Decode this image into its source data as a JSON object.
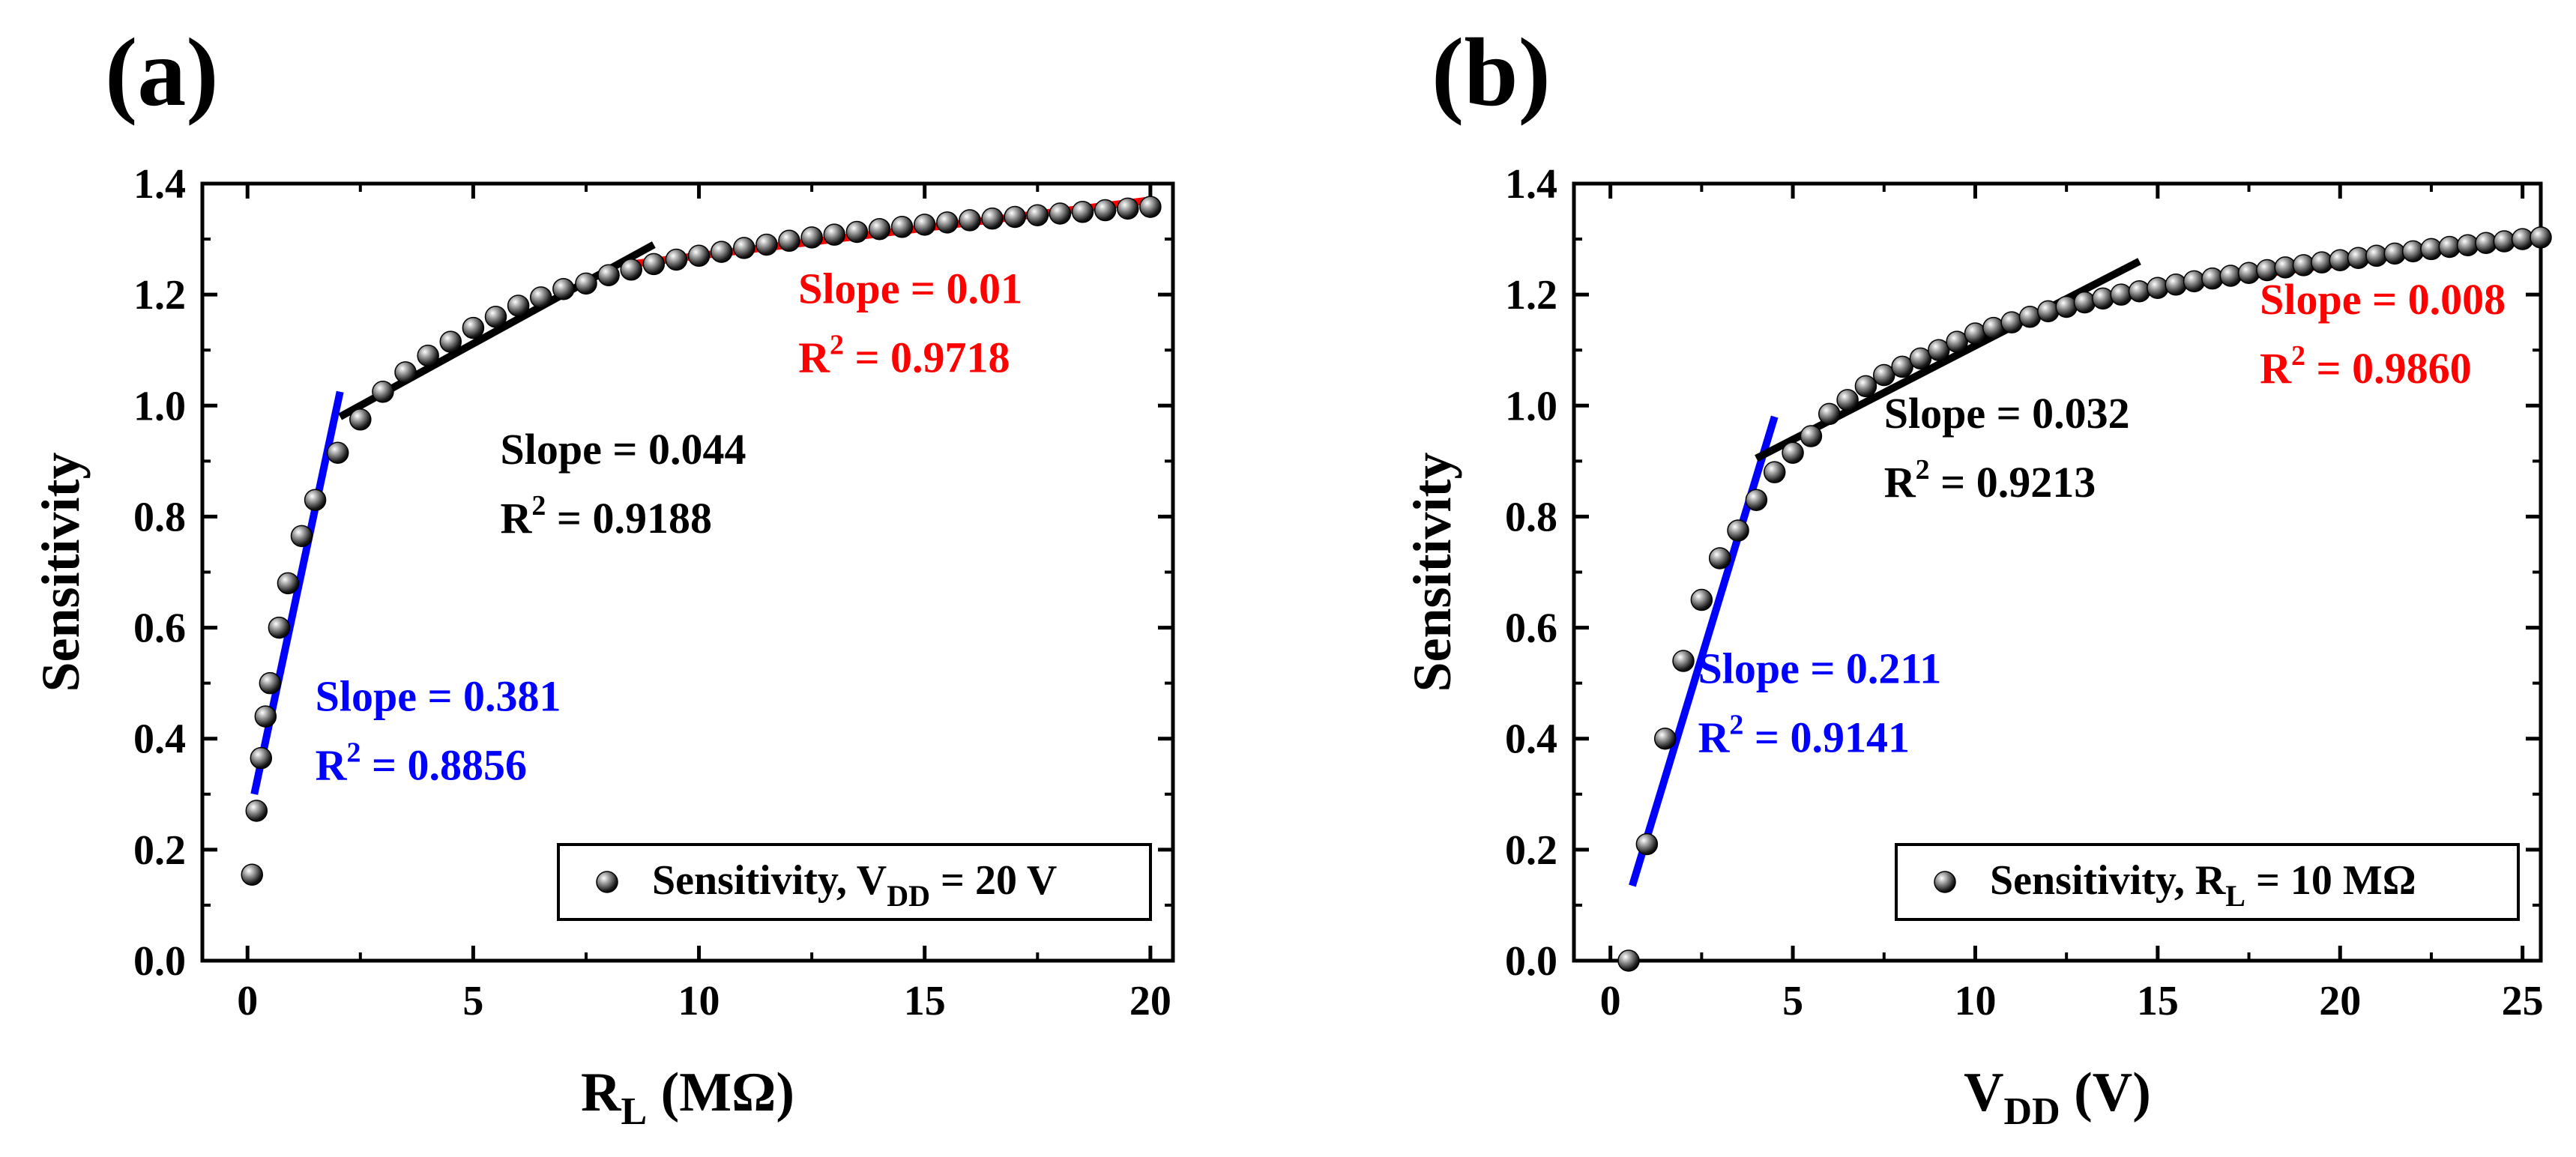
{
  "chart_data": [
    {
      "panel_label": "(a)",
      "type": "scatter",
      "xlabel": "R",
      "xlabel_sub": "L",
      "xlabel_tail": " (MΩ)",
      "ylabel": "Sensitivity",
      "xlim": [
        -1,
        20.5
      ],
      "ylim": [
        0,
        1.4
      ],
      "xticks": [
        "0",
        "5",
        "10",
        "15",
        "20"
      ],
      "xtick_values": [
        0,
        5,
        10,
        15,
        20
      ],
      "yticks": [
        "0.0",
        "0.2",
        "0.4",
        "0.6",
        "0.8",
        "1.0",
        "1.2",
        "1.4"
      ],
      "ytick_values": [
        0,
        0.2,
        0.4,
        0.6,
        0.8,
        1.0,
        1.2,
        1.4
      ],
      "grid": false,
      "legend": {
        "position": "bottom-right",
        "text": "Sensitivity, V",
        "sub": "DD",
        "tail": " = 20 V"
      },
      "series": [
        {
          "name": "Sensitivity, VDD = 20 V",
          "x": [
            0.1,
            0.2,
            0.3,
            0.4,
            0.5,
            0.7,
            0.9,
            1.2,
            1.5,
            2.0,
            2.5,
            3.0,
            3.5,
            4.0,
            4.5,
            5.0,
            5.5,
            6.0,
            6.5,
            7.0,
            7.5,
            8.0,
            8.5,
            9.0,
            9.5,
            10.0,
            10.5,
            11.0,
            11.5,
            12.0,
            12.5,
            13.0,
            13.5,
            14.0,
            14.5,
            15.0,
            15.5,
            16.0,
            16.5,
            17.0,
            17.5,
            18.0,
            18.5,
            19.0,
            19.5,
            20.0
          ],
          "y": [
            0.155,
            0.27,
            0.365,
            0.44,
            0.5,
            0.6,
            0.68,
            0.765,
            0.83,
            0.915,
            0.975,
            1.025,
            1.06,
            1.09,
            1.115,
            1.14,
            1.16,
            1.18,
            1.195,
            1.21,
            1.22,
            1.235,
            1.245,
            1.255,
            1.263,
            1.27,
            1.277,
            1.284,
            1.29,
            1.297,
            1.303,
            1.308,
            1.313,
            1.318,
            1.322,
            1.326,
            1.33,
            1.334,
            1.337,
            1.34,
            1.343,
            1.346,
            1.349,
            1.352,
            1.355,
            1.358
          ]
        }
      ],
      "fits": [
        {
          "color": "#0000ff",
          "x": [
            0.15,
            2.05
          ],
          "y": [
            0.3,
            1.025
          ],
          "slope_text": "Slope = 0.381",
          "r2_text": "= 0.8856",
          "label_x": 1.5,
          "label_y": 0.45
        },
        {
          "color": "#000000",
          "x": [
            2.05,
            9.0
          ],
          "y": [
            0.98,
            1.29
          ],
          "slope_text": "Slope = 0.044",
          "r2_text": "= 0.9188",
          "label_x": 5.6,
          "label_y": 0.895
        },
        {
          "color": "#ff0000",
          "x": [
            8.5,
            20.0
          ],
          "y": [
            1.255,
            1.37
          ],
          "slope_text": "Slope = 0.01",
          "r2_text": "= 0.9718",
          "label_x": 12.2,
          "label_y": 1.185
        }
      ]
    },
    {
      "panel_label": "(b)",
      "type": "scatter",
      "xlabel": "V",
      "xlabel_sub": "DD",
      "xlabel_tail": " (V)",
      "ylabel": "Sensitivity",
      "xlim": [
        -1,
        25.5
      ],
      "ylim": [
        0,
        1.4
      ],
      "xticks": [
        "0",
        "5",
        "10",
        "15",
        "20",
        "25"
      ],
      "xtick_values": [
        0,
        5,
        10,
        15,
        20,
        25
      ],
      "yticks": [
        "0.0",
        "0.2",
        "0.4",
        "0.6",
        "0.8",
        "1.0",
        "1.2",
        "1.4"
      ],
      "ytick_values": [
        0,
        0.2,
        0.4,
        0.6,
        0.8,
        1.0,
        1.2,
        1.4
      ],
      "grid": false,
      "legend": {
        "position": "bottom-right",
        "text": "Sensitivity, R",
        "sub": "L",
        "tail": " = 10 MΩ"
      },
      "series": [
        {
          "name": "Sensitivity, RL = 10 MΩ",
          "x": [
            0.5,
            1.0,
            1.5,
            2.0,
            2.5,
            3.0,
            3.5,
            4.0,
            4.5,
            5.0,
            5.5,
            6.0,
            6.5,
            7.0,
            7.5,
            8.0,
            8.5,
            9.0,
            9.5,
            10.0,
            10.5,
            11.0,
            11.5,
            12.0,
            12.5,
            13.0,
            13.5,
            14.0,
            14.5,
            15.0,
            15.5,
            16.0,
            16.5,
            17.0,
            17.5,
            18.0,
            18.5,
            19.0,
            19.5,
            20.0,
            20.5,
            21.0,
            21.5,
            22.0,
            22.5,
            23.0,
            23.5,
            24.0,
            24.5,
            25.0,
            25.5
          ],
          "y": [
            0.0,
            0.21,
            0.4,
            0.54,
            0.65,
            0.725,
            0.775,
            0.83,
            0.88,
            0.915,
            0.945,
            0.985,
            1.01,
            1.035,
            1.055,
            1.07,
            1.085,
            1.1,
            1.115,
            1.13,
            1.14,
            1.15,
            1.16,
            1.17,
            1.178,
            1.186,
            1.193,
            1.2,
            1.206,
            1.212,
            1.218,
            1.224,
            1.229,
            1.234,
            1.239,
            1.244,
            1.249,
            1.253,
            1.258,
            1.262,
            1.266,
            1.27,
            1.274,
            1.278,
            1.282,
            1.286,
            1.289,
            1.293,
            1.296,
            1.3,
            1.303
          ]
        }
      ],
      "fits": [
        {
          "color": "#0000ff",
          "x": [
            0.6,
            4.5
          ],
          "y": [
            0.135,
            0.98
          ],
          "slope_text": "Slope = 0.211",
          "r2_text": "= 0.9141",
          "label_x": 2.4,
          "label_y": 0.5
        },
        {
          "color": "#000000",
          "x": [
            4.0,
            14.5
          ],
          "y": [
            0.905,
            1.26
          ],
          "slope_text": "Slope = 0.032",
          "r2_text": "= 0.9213",
          "label_x": 7.5,
          "label_y": 0.96
        },
        {
          "color": "#ff0000",
          "x": [
            14.8,
            25.5
          ],
          "y": [
            1.21,
            1.305
          ],
          "slope_text": "Slope = 0.008",
          "r2_text": "= 0.9860",
          "label_x": 17.8,
          "label_y": 1.165
        }
      ]
    }
  ]
}
